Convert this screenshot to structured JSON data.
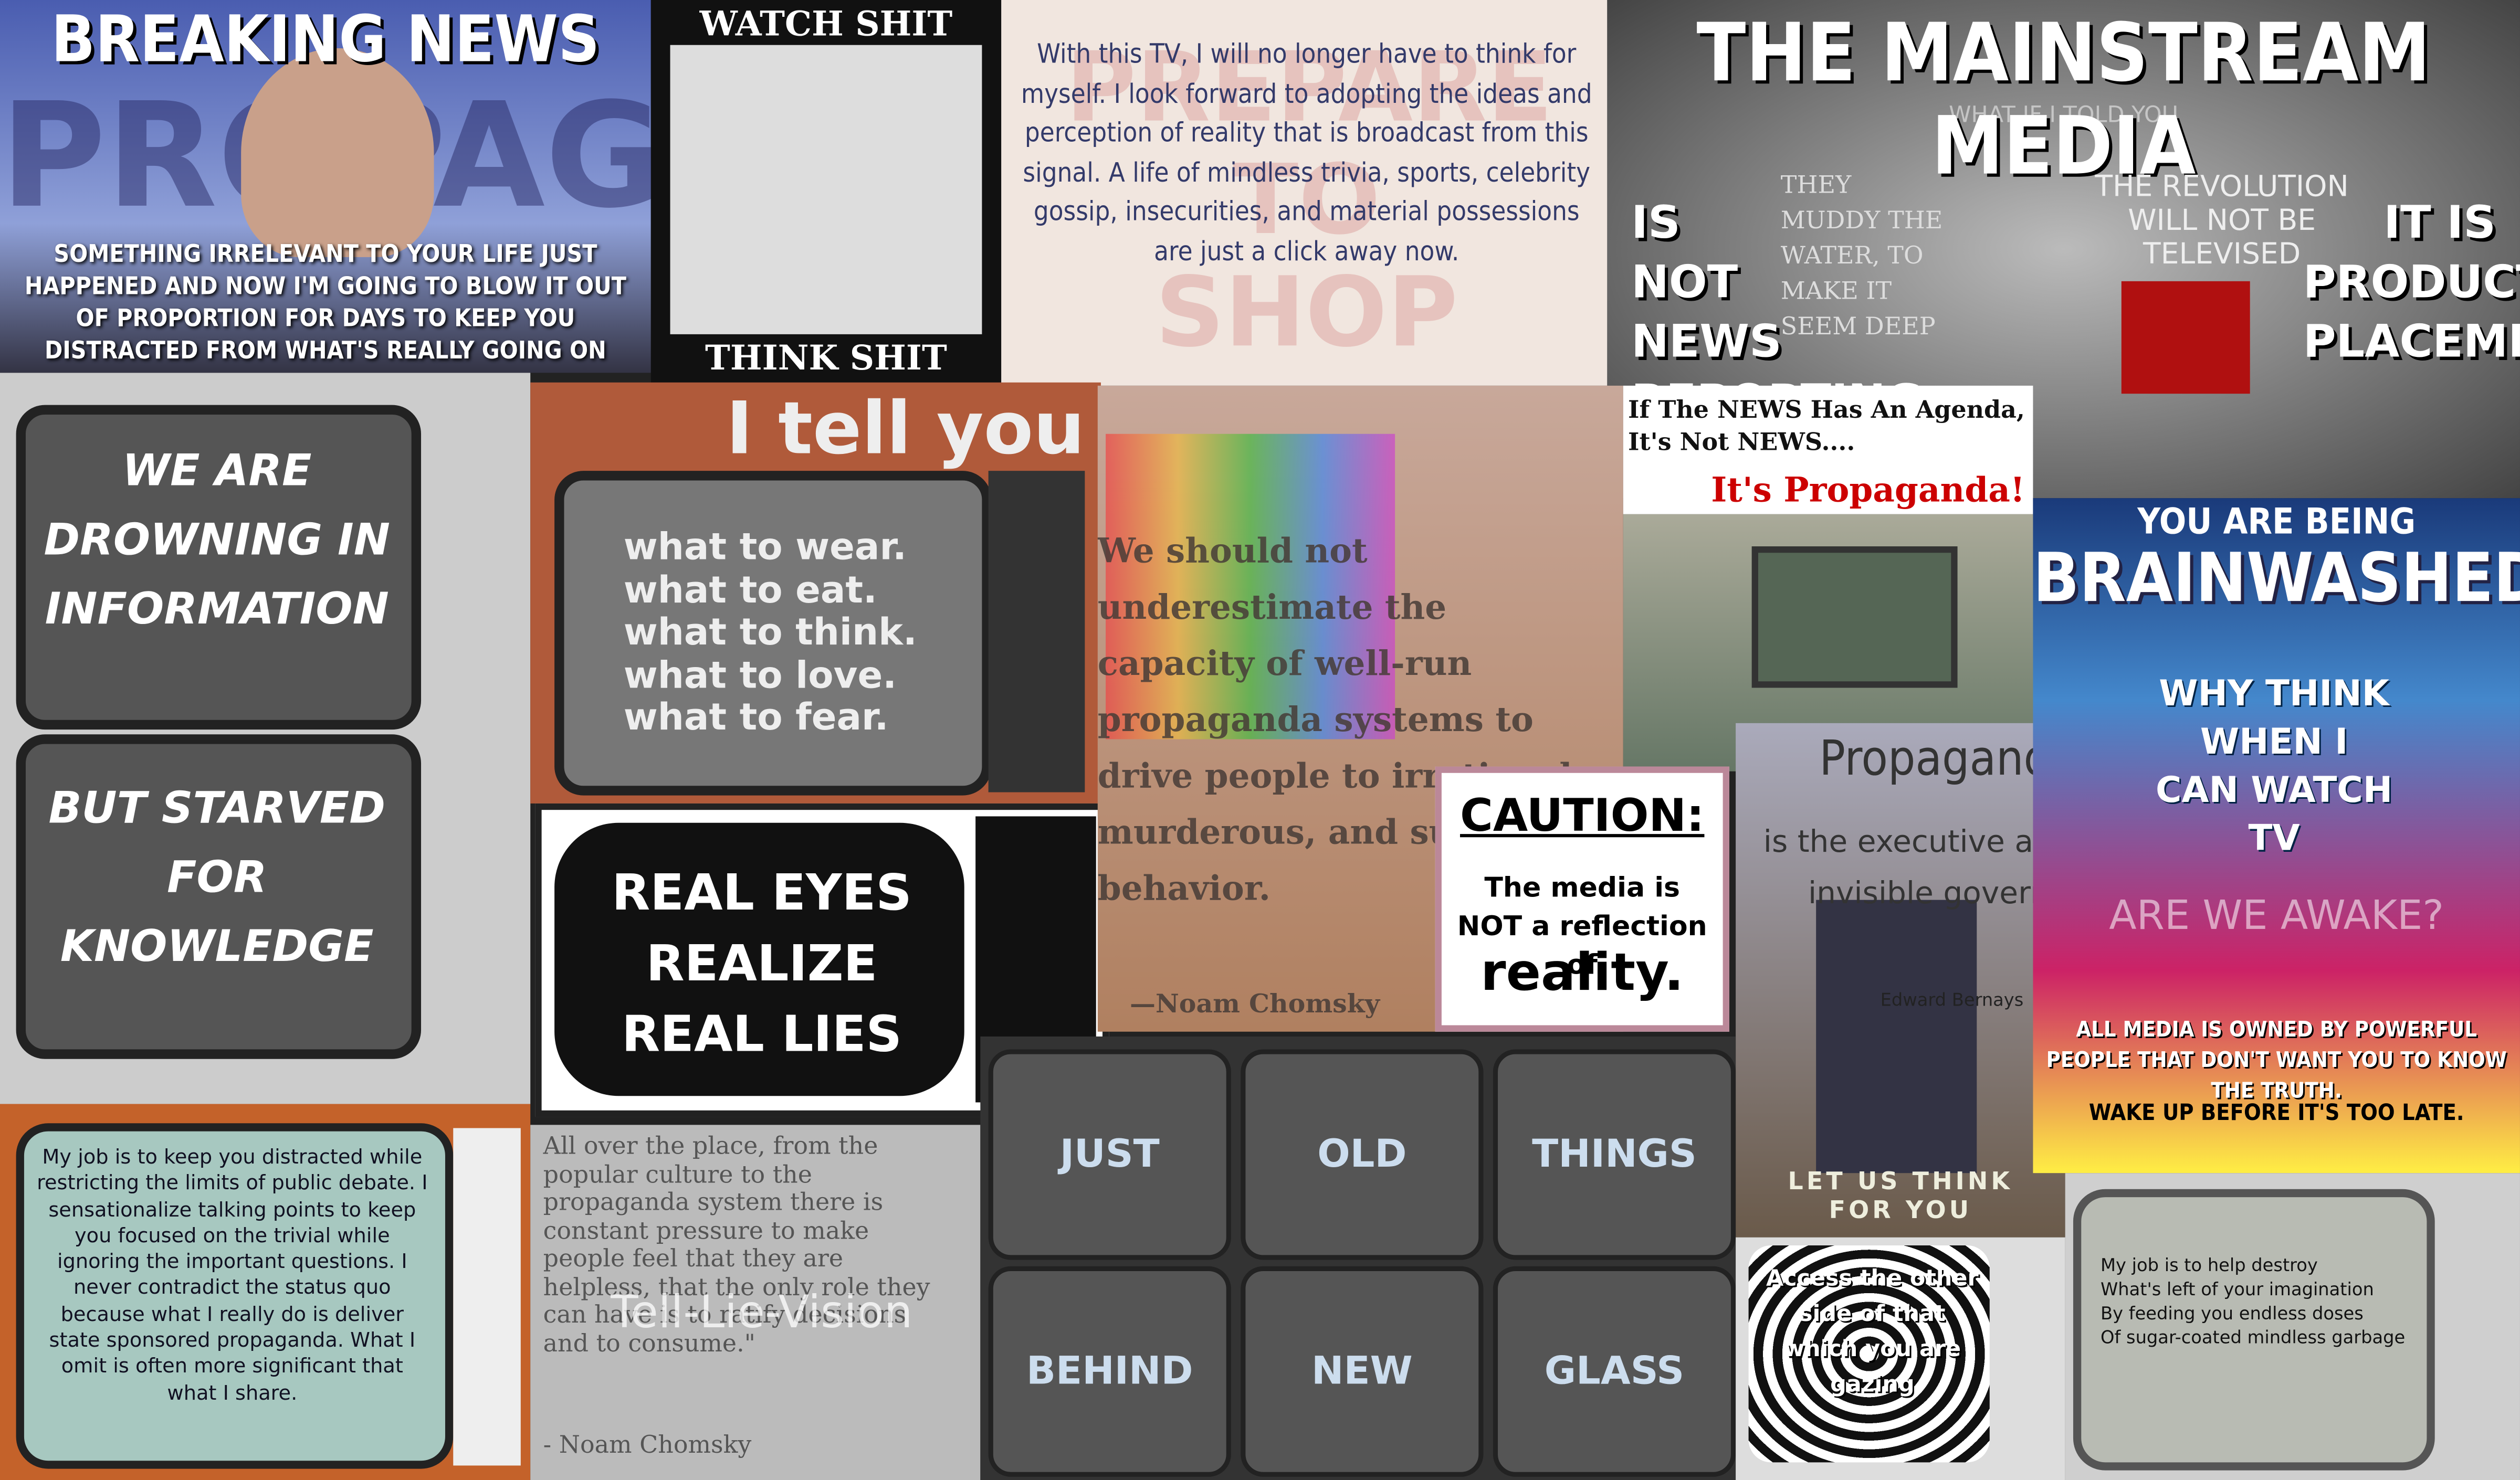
{
  "breaking": {
    "title": "BREAKING NEWS",
    "watermark": "PROPAGANDA",
    "caption": "SOMETHING IRRELEVANT TO YOUR LIFE JUST HAPPENED AND NOW I'M GOING TO BLOW IT OUT OF PROPORTION FOR DAYS TO KEEP YOU DISTRACTED FROM WHAT'S REALLY GOING ON"
  },
  "watch": {
    "top": "WATCH SHIT",
    "bottom": "THINK SHIT"
  },
  "tv_quote": {
    "text": "With this TV, I will no longer have to think for myself. I look forward to adopting the ideas and perception of reality that is broadcast from this signal. A life of mindless trivia, sports, celebrity gossip, insecurities, and material possessions are just a click away now.",
    "watermark": "PREPARE TO SHOP"
  },
  "mainstream": {
    "title": "THE MAINSTREAM MEDIA",
    "left": "IS NOT NEWS REPORTING",
    "right": "IT IS PRODUCT PLACEMENT",
    "top_note": "WHAT IF I TOLD YOU",
    "middle": "THEY MUDDY THE WATER, TO MAKE IT SEEM DEEP",
    "revolution": "THE REVOLUTION WILL NOT BE TELEVISED"
  },
  "drowning": {
    "top": "WE ARE DROWNING IN INFORMATION",
    "bottom": "BUT STARVED FOR KNOWLEDGE"
  },
  "tell": {
    "title": "I tell you",
    "lines": [
      "what to wear.",
      "what to eat.",
      "what to think.",
      "what to love.",
      "what to fear."
    ]
  },
  "real_eyes": {
    "text": "REAL EYES REALIZE REAL LIES"
  },
  "chomsky": {
    "quote": "We should not underestimate the capacity of well-run propaganda systems to drive people to irrational, murderous, and suicidal behavior.",
    "author": "—Noam Chomsky"
  },
  "agenda": {
    "text": "If The NEWS Has An Agenda, It's Not NEWS....",
    "punch": "It's Propaganda!"
  },
  "caution": {
    "title": "CAUTION:",
    "text": "The media is NOT a reflection of",
    "punch": "reality."
  },
  "bernays": {
    "title": "Propaganda",
    "text": "is the executive arm of the invisible government",
    "author": "Edward Bernays",
    "bottom": "LET US THINK FOR YOU"
  },
  "brainwashed": {
    "top": "YOU ARE BEING",
    "title": "BRAINWASHED",
    "screen": "WHY THINK WHEN I CAN WATCH TV",
    "awake": "ARE WE AWAKE?",
    "owned": "ALL MEDIA IS OWNED BY POWERFUL PEOPLE THAT DON'T WANT YOU TO KNOW THE TRUTH.",
    "wake": "WAKE UP BEFORE IT'S TOO LATE."
  },
  "job1": {
    "text": "My job is to keep you distracted while restricting the limits of public debate. I sensationalize talking points to keep you focused on the trivial while ignoring the important questions. I never contradict the status quo because what I really do is deliver state sponsored propaganda. What I omit is often more significant that what I share."
  },
  "chomsky2": {
    "quote": "All over the place, from the popular culture to the propaganda system there is constant pressure to make people feel that they are helpless, that the only role they can have is to ratify decisions and to consume.\"",
    "author": "- Noam Chomsky",
    "overlay": "Tell-Lie-Vision"
  },
  "glass": {
    "words": [
      "JUST",
      "OLD",
      "THINGS",
      "BEHIND",
      "NEW",
      "GLASS"
    ]
  },
  "spiral": {
    "text": "Access the other side of that which you are gazing"
  },
  "job2": {
    "lines": [
      "My job is to help destroy",
      "What's left of your imagination",
      "By feeding you endless doses",
      "Of sugar-coated mindless garbage"
    ]
  }
}
